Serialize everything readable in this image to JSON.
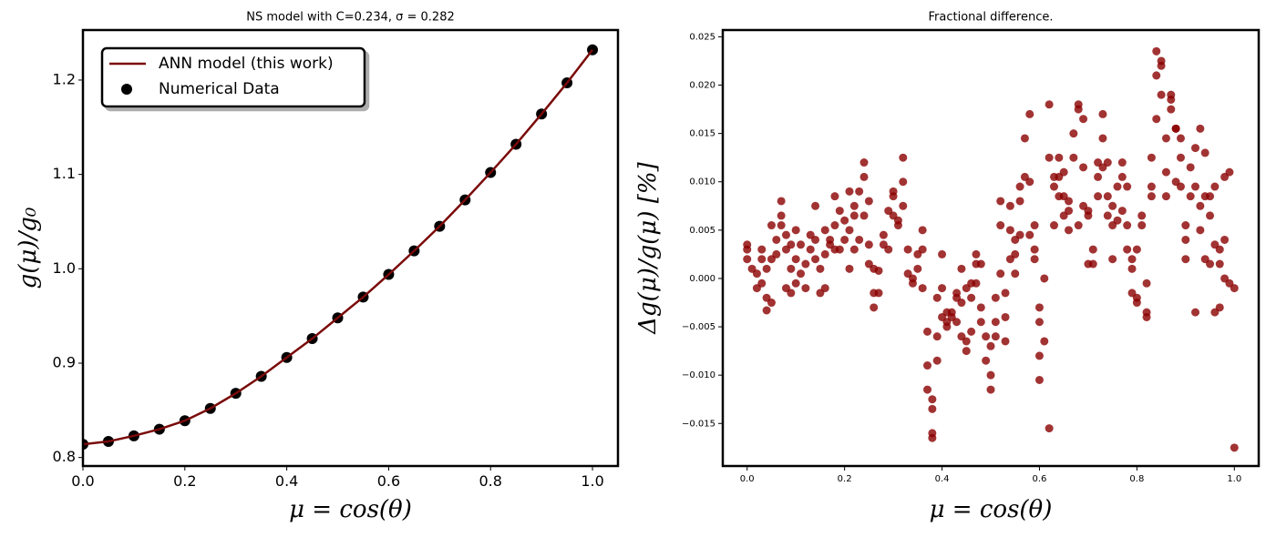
{
  "chart_data": [
    {
      "type": "line",
      "title": "NS model with C=0.234, σ = 0.282",
      "xlabel": "μ = cos(θ)",
      "ylabel": "g(μ)/g₀",
      "x": [
        0,
        0.05,
        0.1,
        0.15,
        0.2,
        0.25,
        0.3,
        0.35,
        0.4,
        0.45,
        0.5,
        0.55,
        0.6,
        0.65,
        0.7,
        0.75,
        0.8,
        0.85,
        0.9,
        0.95,
        1.0
      ],
      "series": [
        {
          "name": "Numerical Data",
          "type": "scatter",
          "color": "#000000",
          "values": [
            0.814,
            0.817,
            0.823,
            0.83,
            0.839,
            0.852,
            0.868,
            0.886,
            0.906,
            0.926,
            0.948,
            0.97,
            0.994,
            1.019,
            1.045,
            1.073,
            1.102,
            1.132,
            1.164,
            1.197,
            1.232
          ]
        },
        {
          "name": "ANN model (this work)",
          "type": "line",
          "color": "#7a0a0a",
          "values": [
            0.814,
            0.817,
            0.823,
            0.83,
            0.839,
            0.852,
            0.868,
            0.886,
            0.906,
            0.926,
            0.948,
            0.97,
            0.994,
            1.019,
            1.045,
            1.073,
            1.102,
            1.132,
            1.164,
            1.197,
            1.232
          ]
        }
      ],
      "xlim": [
        0,
        1.05
      ],
      "ylim": [
        0.791,
        1.253
      ],
      "xticks": [
        {
          "value": 0,
          "label": "0.0"
        },
        {
          "value": 0.2,
          "label": "0.2"
        },
        {
          "value": 0.4,
          "label": "0.4"
        },
        {
          "value": 0.6,
          "label": "0.6"
        },
        {
          "value": 0.8,
          "label": "0.8"
        },
        {
          "value": 1.0,
          "label": "1.0"
        }
      ],
      "yticks": [
        {
          "value": 0.8,
          "label": "0.8"
        },
        {
          "value": 0.9,
          "label": "0.9"
        },
        {
          "value": 1.0,
          "label": "1.0"
        },
        {
          "value": 1.1,
          "label": "1.1"
        },
        {
          "value": 1.2,
          "label": "1.2"
        }
      ],
      "legend": "upper left"
    },
    {
      "type": "scatter",
      "title": "Fractional difference.",
      "xlabel": "μ = cos(θ)",
      "ylabel": "Δg(μ)/g(μ) [%]",
      "color": "#8b0000",
      "x": [
        0,
        0,
        0,
        0.01,
        0.02,
        0.02,
        0.03,
        0.03,
        0.03,
        0.04,
        0.04,
        0.04,
        0.05,
        0.05,
        0.05,
        0.06,
        0.06,
        0.07,
        0.07,
        0.07,
        0.08,
        0.08,
        0.08,
        0.09,
        0.09,
        0.09,
        0.1,
        0.1,
        0.1,
        0.11,
        0.11,
        0.12,
        0.12,
        0.13,
        0.13,
        0.14,
        0.14,
        0.14,
        0.15,
        0.15,
        0.16,
        0.16,
        0.16,
        0.17,
        0.17,
        0.18,
        0.18,
        0.18,
        0.19,
        0.19,
        0.2,
        0.2,
        0.21,
        0.21,
        0.21,
        0.22,
        0.22,
        0.22,
        0.23,
        0.23,
        0.24,
        0.24,
        0.24,
        0.25,
        0.25,
        0.25,
        0.26,
        0.26,
        0.26,
        0.27,
        0.27,
        0.28,
        0.28,
        0.29,
        0.29,
        0.3,
        0.3,
        0.3,
        0.31,
        0.31,
        0.32,
        0.32,
        0.32,
        0.33,
        0.33,
        0.34,
        0.34,
        0.35,
        0.35,
        0.36,
        0.36,
        0.36,
        0.37,
        0.37,
        0.37,
        0.38,
        0.38,
        0.38,
        0.38,
        0.39,
        0.39,
        0.39,
        0.4,
        0.4,
        0.4,
        0.41,
        0.41,
        0.41,
        0.42,
        0.42,
        0.43,
        0.43,
        0.43,
        0.44,
        0.44,
        0.44,
        0.45,
        0.45,
        0.45,
        0.46,
        0.46,
        0.46,
        0.47,
        0.47,
        0.47,
        0.48,
        0.48,
        0.48,
        0.49,
        0.49,
        0.5,
        0.5,
        0.5,
        0.51,
        0.51,
        0.51,
        0.52,
        0.52,
        0.52,
        0.53,
        0.53,
        0.53,
        0.54,
        0.54,
        0.54,
        0.55,
        0.55,
        0.55,
        0.56,
        0.56,
        0.56,
        0.57,
        0.57,
        0.58,
        0.58,
        0.58,
        0.59,
        0.59,
        0.59,
        0.6,
        0.6,
        0.6,
        0.6,
        0.61,
        0.61,
        0.62,
        0.62,
        0.62,
        0.63,
        0.63,
        0.63,
        0.64,
        0.64,
        0.64,
        0.65,
        0.65,
        0.65,
        0.66,
        0.66,
        0.66,
        0.67,
        0.67,
        0.68,
        0.68,
        0.68,
        0.69,
        0.69,
        0.69,
        0.7,
        0.7,
        0.7,
        0.71,
        0.71,
        0.72,
        0.72,
        0.72,
        0.73,
        0.73,
        0.73,
        0.74,
        0.74,
        0.74,
        0.75,
        0.75,
        0.75,
        0.76,
        0.76,
        0.77,
        0.77,
        0.77,
        0.78,
        0.78,
        0.78,
        0.79,
        0.79,
        0.79,
        0.8,
        0.8,
        0.8,
        0.81,
        0.81,
        0.82,
        0.82,
        0.82,
        0.83,
        0.83,
        0.83,
        0.84,
        0.84,
        0.84,
        0.85,
        0.85,
        0.85,
        0.86,
        0.86,
        0.86,
        0.87,
        0.87,
        0.87,
        0.88,
        0.88,
        0.88,
        0.89,
        0.89,
        0.89,
        0.9,
        0.9,
        0.9,
        0.91,
        0.91,
        0.92,
        0.92,
        0.92,
        0.93,
        0.93,
        0.93,
        0.94,
        0.94,
        0.94,
        0.95,
        0.95,
        0.95,
        0.96,
        0.96,
        0.96,
        0.97,
        0.97,
        0.97,
        0.98,
        0.98,
        0.98,
        0.99,
        0.99,
        1.0,
        1.0
      ],
      "values": [
        0.003,
        0.002,
        0.0035,
        0.001,
        -0.001,
        0.0005,
        0.003,
        -0.0005,
        0.002,
        -0.002,
        -0.0033,
        0.001,
        -0.0025,
        0.002,
        0.0055,
        0.004,
        0.0025,
        0.008,
        0.0055,
        0.0065,
        0.0045,
        -0.001,
        0.003,
        -0.0015,
        0.0035,
        0.001,
        0.002,
        0.005,
        -0.0005,
        0.0005,
        0.0035,
        -0.001,
        0.0015,
        0.0045,
        0.003,
        0.0075,
        0.004,
        0.002,
        0.001,
        -0.0015,
        -0.001,
        0.0025,
        0.005,
        0.004,
        0.0035,
        0.0085,
        0.0055,
        0.003,
        0.007,
        0.003,
        0.006,
        0.004,
        0.009,
        0.005,
        0.001,
        0.003,
        0.0075,
        0.0065,
        0.009,
        0.004,
        0.012,
        0.0105,
        0.0065,
        0.0035,
        0.0015,
        0.008,
        0.001,
        -0.0015,
        -0.003,
        0.0008,
        -0.0015,
        0.0035,
        0.0045,
        0.007,
        0.003,
        0.009,
        0.0065,
        0.0085,
        0.006,
        0.0055,
        0.0125,
        0.01,
        0.0075,
        0.003,
        0.0005,
        -0.0005,
        0,
        0.001,
        0.0025,
        0.005,
        0.003,
        -0.001,
        -0.0055,
        -0.009,
        -0.0115,
        -0.0135,
        -0.016,
        -0.0165,
        -0.0125,
        -0.0085,
        -0.006,
        -0.002,
        0.0025,
        -0.001,
        -0.004,
        -0.0035,
        -0.005,
        -0.0045,
        -0.004,
        -0.0035,
        -0.002,
        -0.0045,
        -0.0015,
        0.001,
        -0.0025,
        -0.006,
        -0.0065,
        -0.0075,
        -0.001,
        -0.0055,
        -0.002,
        -0.0005,
        0.0025,
        0.0015,
        -0.0005,
        0.0015,
        -0.003,
        -0.0045,
        -0.006,
        -0.0085,
        -0.01,
        -0.0115,
        -0.007,
        -0.002,
        -0.0045,
        -0.006,
        0.0005,
        0.008,
        0.0055,
        -0.004,
        -0.0065,
        -0.0015,
        0.002,
        0.005,
        0.0075,
        0.0005,
        0.004,
        0.0025,
        0.0095,
        0.008,
        0.0045,
        0.0105,
        0.0145,
        0.017,
        0.01,
        0.0045,
        0.002,
        0.003,
        0.0055,
        -0.003,
        -0.0045,
        -0.008,
        -0.0105,
        -0.0065,
        0,
        0.018,
        0.0125,
        -0.0155,
        0.0105,
        0.0095,
        0.0055,
        0.0125,
        0.0105,
        0.0085,
        0.011,
        0.0085,
        0.0065,
        0.005,
        0.007,
        0.008,
        0.015,
        0.0125,
        0.018,
        0.0175,
        0.0055,
        0.0165,
        0.0115,
        0.0075,
        0.007,
        0.0065,
        0.0015,
        0.003,
        0.0015,
        0.0085,
        0.0105,
        0.012,
        0.0145,
        0.017,
        0.0115,
        0.012,
        0.0085,
        0.0065,
        0.0075,
        0.0055,
        0.002,
        0.0095,
        0.006,
        0.007,
        0.0105,
        0.012,
        0.0095,
        0.0055,
        0.003,
        0.002,
        0.001,
        -0.0015,
        -0.002,
        -0.0025,
        0.003,
        0.0065,
        0.0055,
        -0.0005,
        -0.0035,
        -0.004,
        0.0125,
        0.0095,
        0.0085,
        0.0165,
        0.021,
        0.0235,
        0.022,
        0.0225,
        0.019,
        0.0145,
        0.011,
        0.0085,
        0.019,
        0.0185,
        0.0175,
        0.0155,
        0.0155,
        0.01,
        0.0145,
        0.0125,
        0.0095,
        0.0055,
        0.004,
        0.002,
        0.0085,
        0.0115,
        -0.0035,
        0.0095,
        0.0135,
        0.0155,
        0.0075,
        0.005,
        0.013,
        0.0085,
        0.002,
        0.0065,
        0.0085,
        0.0015,
        0.0035,
        0.0095,
        -0.0035,
        0.003,
        -0.003,
        0.0015,
        0.0105,
        0,
        0.004,
        0.011,
        -0.0005,
        -0.0175,
        -0.001
      ],
      "xlim": [
        -0.05,
        1.05
      ],
      "ylim": [
        -0.0194,
        0.0257
      ],
      "xticks": [
        {
          "value": 0,
          "label": "0.0"
        },
        {
          "value": 0.2,
          "label": "0.2"
        },
        {
          "value": 0.4,
          "label": "0.4"
        },
        {
          "value": 0.6,
          "label": "0.6"
        },
        {
          "value": 0.8,
          "label": "0.8"
        },
        {
          "value": 1.0,
          "label": "1.0"
        }
      ],
      "yticks": [
        {
          "value": -0.015,
          "label": "−0.015"
        },
        {
          "value": -0.01,
          "label": "−0.010"
        },
        {
          "value": -0.005,
          "label": "−0.005"
        },
        {
          "value": 0,
          "label": "0.000"
        },
        {
          "value": 0.005,
          "label": "0.005"
        },
        {
          "value": 0.01,
          "label": "0.010"
        },
        {
          "value": 0.015,
          "label": "0.015"
        },
        {
          "value": 0.02,
          "label": "0.020"
        },
        {
          "value": 0.025,
          "label": "0.025"
        }
      ]
    }
  ]
}
